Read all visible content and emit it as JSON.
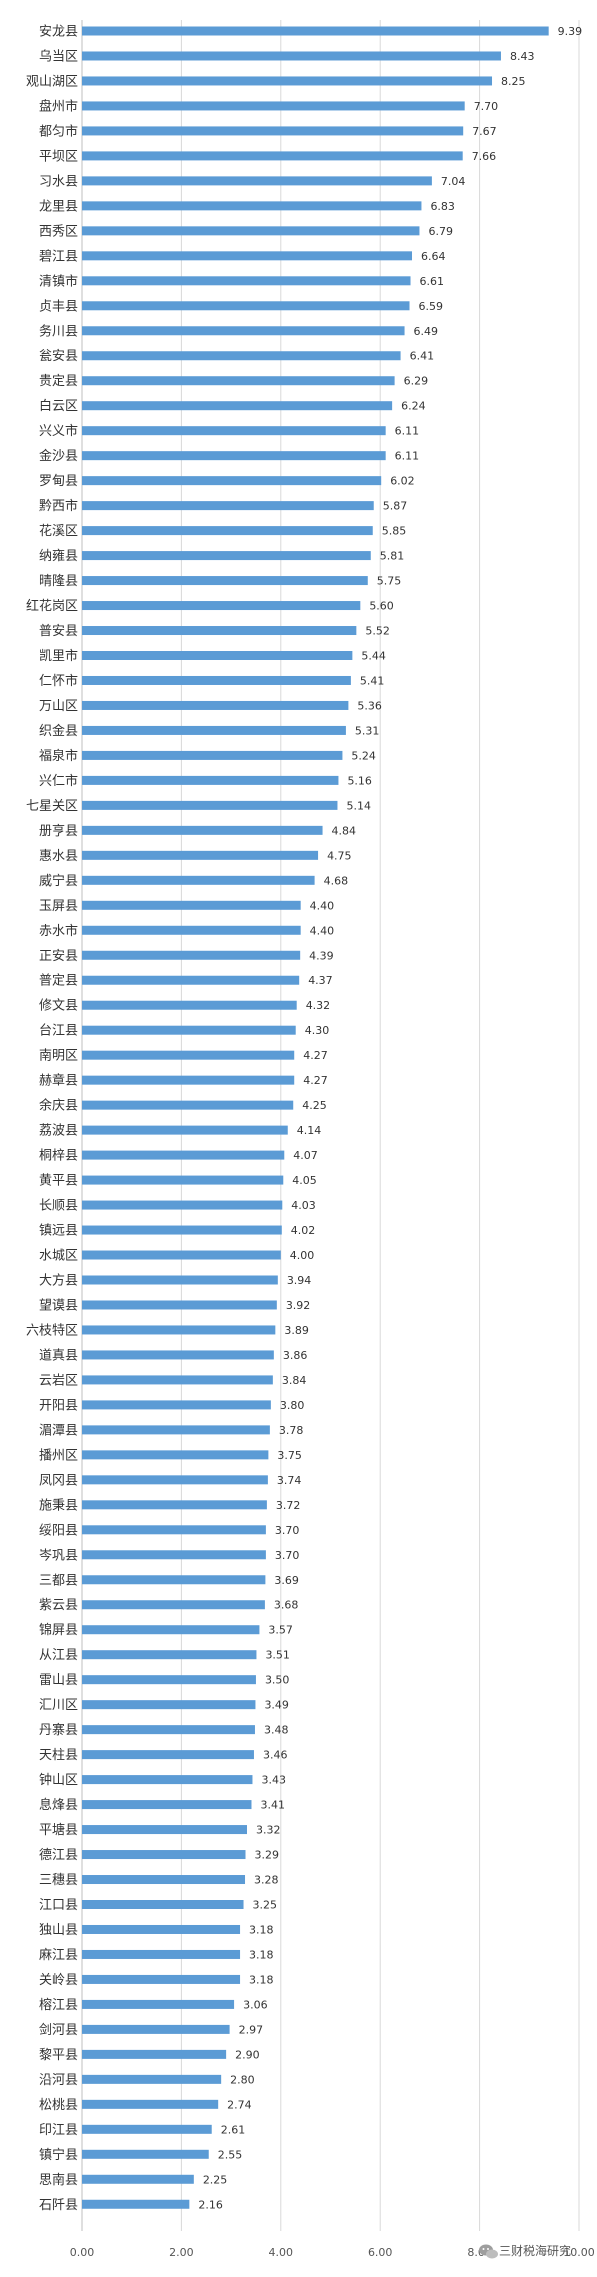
{
  "chart_data": {
    "type": "bar",
    "orientation": "horizontal",
    "color": "#5b9bd5",
    "categories": [
      "安龙县",
      "乌当区",
      "观山湖区",
      "盘州市",
      "都匀市",
      "平坝区",
      "习水县",
      "龙里县",
      "西秀区",
      "碧江县",
      "清镇市",
      "贞丰县",
      "务川县",
      "瓮安县",
      "贵定县",
      "白云区",
      "兴义市",
      "金沙县",
      "罗甸县",
      "黔西市",
      "花溪区",
      "纳雍县",
      "晴隆县",
      "红花岗区",
      "普安县",
      "凯里市",
      "仁怀市",
      "万山区",
      "织金县",
      "福泉市",
      "兴仁市",
      "七星关区",
      "册亨县",
      "惠水县",
      "威宁县",
      "玉屏县",
      "赤水市",
      "正安县",
      "普定县",
      "修文县",
      "台江县",
      "南明区",
      "赫章县",
      "余庆县",
      "荔波县",
      "桐梓县",
      "黄平县",
      "长顺县",
      "镇远县",
      "水城区",
      "大方县",
      "望谟县",
      "六枝特区",
      "道真县",
      "云岩区",
      "开阳县",
      "湄潭县",
      "播州区",
      "凤冈县",
      "施秉县",
      "绥阳县",
      "岑巩县",
      "三都县",
      "紫云县",
      "锦屏县",
      "从江县",
      "雷山县",
      "汇川区",
      "丹寨县",
      "天柱县",
      "钟山区",
      "息烽县",
      "平塘县",
      "德江县",
      "三穗县",
      "江口县",
      "独山县",
      "麻江县",
      "关岭县",
      "榕江县",
      "剑河县",
      "黎平县",
      "沿河县",
      "松桃县",
      "印江县",
      "镇宁县",
      "思南县",
      "石阡县"
    ],
    "values": [
      9.39,
      8.43,
      8.25,
      7.7,
      7.67,
      7.66,
      7.04,
      6.83,
      6.79,
      6.64,
      6.61,
      6.59,
      6.49,
      6.41,
      6.29,
      6.24,
      6.11,
      6.11,
      6.02,
      5.87,
      5.85,
      5.81,
      5.75,
      5.6,
      5.52,
      5.44,
      5.41,
      5.36,
      5.31,
      5.24,
      5.16,
      5.14,
      4.84,
      4.75,
      4.68,
      4.4,
      4.4,
      4.39,
      4.37,
      4.32,
      4.3,
      4.27,
      4.27,
      4.25,
      4.14,
      4.07,
      4.05,
      4.03,
      4.02,
      4.0,
      3.94,
      3.92,
      3.89,
      3.86,
      3.84,
      3.8,
      3.78,
      3.75,
      3.74,
      3.72,
      3.7,
      3.7,
      3.69,
      3.68,
      3.57,
      3.51,
      3.5,
      3.49,
      3.48,
      3.46,
      3.43,
      3.41,
      3.32,
      3.29,
      3.28,
      3.25,
      3.18,
      3.18,
      3.18,
      3.06,
      2.97,
      2.9,
      2.8,
      2.74,
      2.61,
      2.55,
      2.25,
      2.16
    ],
    "value_labels": [
      "9.39",
      "8.43",
      "8.25",
      "7.70",
      "7.67",
      "7.66",
      "7.04",
      "6.83",
      "6.79",
      "6.64",
      "6.61",
      "6.59",
      "6.49",
      "6.41",
      "6.29",
      "6.24",
      "6.11",
      "6.11",
      "6.02",
      "5.87",
      "5.85",
      "5.81",
      "5.75",
      "5.60",
      "5.52",
      "5.44",
      "5.41",
      "5.36",
      "5.31",
      "5.24",
      "5.16",
      "5.14",
      "4.84",
      "4.75",
      "4.68",
      "4.40",
      "4.40",
      "4.39",
      "4.37",
      "4.32",
      "4.30",
      "4.27",
      "4.27",
      "4.25",
      "4.14",
      "4.07",
      "4.05",
      "4.03",
      "4.02",
      "4.00",
      "3.94",
      "3.92",
      "3.89",
      "3.86",
      "3.84",
      "3.80",
      "3.78",
      "3.75",
      "3.74",
      "3.72",
      "3.70",
      "3.70",
      "3.69",
      "3.68",
      "3.57",
      "3.51",
      "3.50",
      "3.49",
      "3.48",
      "3.46",
      "3.43",
      "3.41",
      "3.32",
      "3.29",
      "3.28",
      "3.25",
      "3.18",
      "3.18",
      "3.18",
      "3.06",
      "2.97",
      "2.90",
      "2.80",
      "2.74",
      "2.61",
      "2.55",
      "2.25",
      "2.16"
    ],
    "xlim": [
      0,
      10
    ],
    "xticks": [
      0,
      2,
      4,
      6,
      8,
      10
    ],
    "xtick_labels": [
      "0.00",
      "2.00",
      "4.00",
      "6.00",
      "8.00",
      "10.00"
    ],
    "grid": "vertical",
    "title": "",
    "xlabel": "",
    "ylabel": ""
  },
  "watermark": {
    "icon": "wechat-icon",
    "text": "三财税海研究"
  }
}
